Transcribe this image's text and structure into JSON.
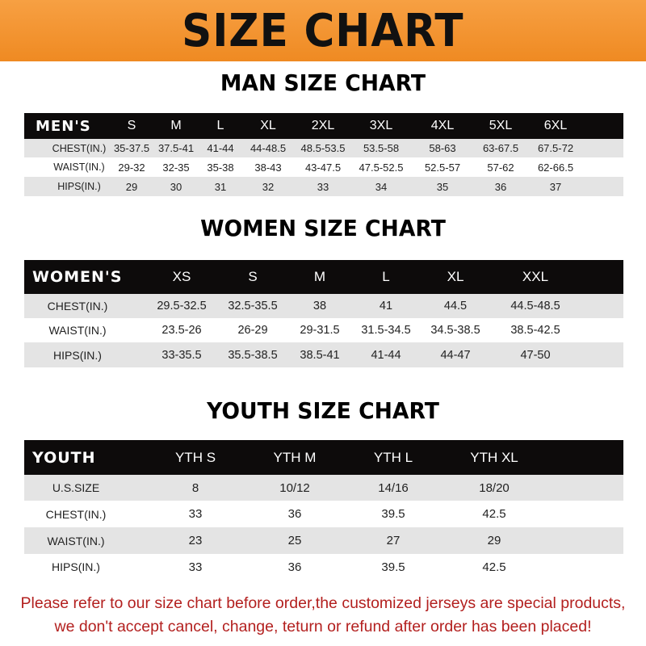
{
  "banner": {
    "title": "SIZE CHART",
    "color": "#ef8a22"
  },
  "men": {
    "title": "MAN SIZE CHART",
    "header": [
      "MEN'S",
      "S",
      "M",
      "L",
      "XL",
      "2XL",
      "3XL",
      "4XL",
      "5XL",
      "6XL"
    ],
    "rows": [
      [
        "CHEST(IN.)",
        "35-37.5",
        "37.5-41",
        "41-44",
        "44-48.5",
        "48.5-53.5",
        "53.5-58",
        "58-63",
        "63-67.5",
        "67.5-72"
      ],
      [
        "WAIST(IN.)",
        "29-32",
        "32-35",
        "35-38",
        "38-43",
        "43-47.5",
        "47.5-52.5",
        "52.5-57",
        "57-62",
        "62-66.5"
      ],
      [
        "HIPS(IN.)",
        "29",
        "30",
        "31",
        "32",
        "33",
        "34",
        "35",
        "36",
        "37"
      ]
    ]
  },
  "women": {
    "title": "WOMEN SIZE CHART",
    "header": [
      "WOMEN'S",
      "XS",
      "S",
      "M",
      "L",
      "XL",
      "XXL"
    ],
    "rows": [
      [
        "CHEST(IN.)",
        "29.5-32.5",
        "32.5-35.5",
        "38",
        "41",
        "44.5",
        "44.5-48.5"
      ],
      [
        "WAIST(IN.)",
        "23.5-26",
        "26-29",
        "29-31.5",
        "31.5-34.5",
        "34.5-38.5",
        "38.5-42.5"
      ],
      [
        "HIPS(IN.)",
        "33-35.5",
        "35.5-38.5",
        "38.5-41",
        "41-44",
        "44-47",
        "47-50"
      ]
    ]
  },
  "youth": {
    "title": "YOUTH SIZE CHART",
    "header": [
      "YOUTH",
      "YTH S",
      "YTH M",
      "YTH L",
      "YTH XL"
    ],
    "rows": [
      [
        "U.S.SIZE",
        "8",
        "10/12",
        "14/16",
        "18/20"
      ],
      [
        "CHEST(IN.)",
        "33",
        "36",
        "39.5",
        "42.5"
      ],
      [
        "WAIST(IN.)",
        "23",
        "25",
        "27",
        "29"
      ],
      [
        "HIPS(IN.)",
        "33",
        "36",
        "39.5",
        "42.5"
      ]
    ]
  },
  "notice": {
    "line1": "Please refer to our size chart before order,the customized jerseys are special products,",
    "line2": "we don't accept cancel, change, teturn or refund after order has been placed!",
    "color": "#b3201f"
  }
}
